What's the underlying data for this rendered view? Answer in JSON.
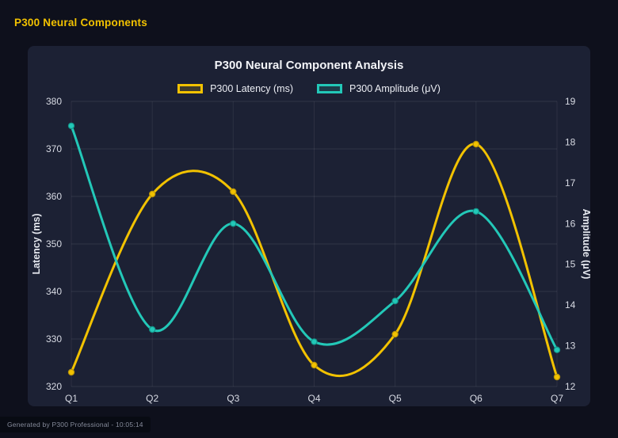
{
  "page": {
    "heading": "P300 Neural Components",
    "watermark": "Generated by P300 Professional - 10:05:14"
  },
  "chart_data": {
    "type": "line",
    "title": "P300 Neural Component Analysis",
    "categories": [
      "Q1",
      "Q2",
      "Q3",
      "Q4",
      "Q5",
      "Q6",
      "Q7"
    ],
    "series": [
      {
        "name": "P300 Latency (ms)",
        "axis": "left",
        "color": "#f2c200",
        "point_border": "#b8930a",
        "values": [
          323,
          360.5,
          361,
          324.5,
          331,
          371,
          322
        ]
      },
      {
        "name": "P300 Amplitude (μV)",
        "axis": "right",
        "color": "#23c8b8",
        "point_border": "#14958a",
        "values": [
          18.4,
          13.4,
          16.0,
          13.1,
          14.1,
          16.3,
          12.9
        ]
      }
    ],
    "left_axis": {
      "label": "Latency (ms)",
      "min": 320,
      "max": 380,
      "step": 10
    },
    "right_axis": {
      "label": "Amplitude (μV)",
      "min": 12,
      "max": 19,
      "step": 1
    },
    "grid": true,
    "legend_position": "top",
    "curve": "smooth"
  },
  "colors": {
    "page_background": "#0e101c",
    "card_background": "#1c2134",
    "heading_text": "#f2c200",
    "title_text": "#f2f3f7",
    "tick_text": "#d8dbe4",
    "grid_line": "rgba(255,255,255,0.09)",
    "watermark_text": "#868b9b",
    "watermark_background": "rgba(8,10,18,0.8)"
  }
}
